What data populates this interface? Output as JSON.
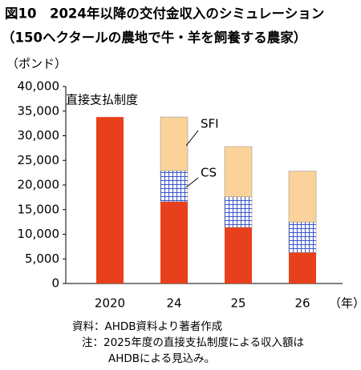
{
  "chart_data": {
    "type": "stacked_bar",
    "title": "図10　2024年以降の交付金収入のシミュレーション",
    "subtitle": "（150ヘクタールの農地で牛・羊を飼養する農家）",
    "y_label": "（ポンド）",
    "x_label": "（年）",
    "categories": [
      "2020",
      "24",
      "25",
      "26"
    ],
    "series": [
      {
        "name": "直接支払制度",
        "color": "#e8401c",
        "values": [
          33800,
          16600,
          11400,
          6300
        ]
      },
      {
        "name": "CS",
        "color": "#3a55c8",
        "values": [
          null,
          6300,
          6200,
          6200
        ]
      },
      {
        "name": "SFI",
        "color": "#fbd39a",
        "values": [
          null,
          10900,
          10200,
          10300
        ]
      }
    ],
    "ylim": [
      0,
      40000
    ],
    "yticks": [
      0,
      {
        "value": 5000,
        "label": "5,000"
      },
      {
        "value": 10000,
        "label": "10,000"
      },
      {
        "value": 15000,
        "label": "15,000"
      },
      {
        "value": 20000,
        "label": "20,000"
      },
      {
        "value": 25000,
        "label": "25,000"
      },
      {
        "value": 30000,
        "label": "30,000"
      },
      {
        "value": 35000,
        "label": "35,000"
      },
      {
        "value": 40000,
        "label": "40,000"
      }
    ],
    "notes": [
      "資料：AHDB資料より著者作成",
      "注：2025年度の直接支払制度による収入額は",
      "AHDBによる見込み。"
    ]
  }
}
